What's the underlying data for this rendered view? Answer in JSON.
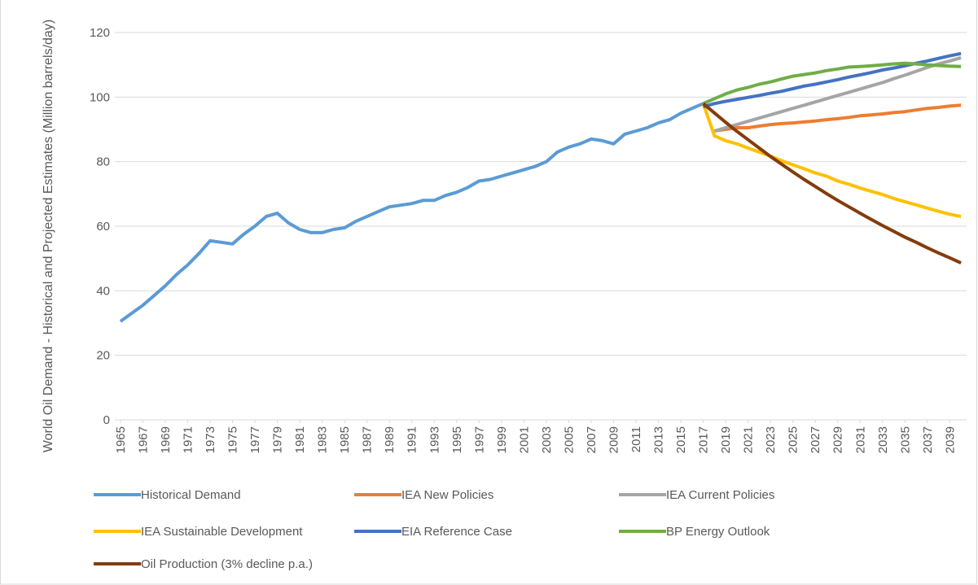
{
  "chart_data": {
    "type": "line",
    "y_label": "World Oil Demand - Historical and Projected Estimates (Million barrels/day)",
    "x": [
      1965,
      1966,
      1967,
      1968,
      1969,
      1970,
      1971,
      1972,
      1973,
      1974,
      1975,
      1976,
      1977,
      1978,
      1979,
      1980,
      1981,
      1982,
      1983,
      1984,
      1985,
      1986,
      1987,
      1988,
      1989,
      1990,
      1991,
      1992,
      1993,
      1994,
      1995,
      1996,
      1997,
      1998,
      1999,
      2000,
      2001,
      2002,
      2003,
      2004,
      2005,
      2006,
      2007,
      2008,
      2009,
      2010,
      2011,
      2012,
      2013,
      2014,
      2015,
      2016,
      2017,
      2018,
      2019,
      2020,
      2021,
      2022,
      2023,
      2024,
      2025,
      2026,
      2027,
      2028,
      2029,
      2030,
      2031,
      2032,
      2033,
      2034,
      2035,
      2036,
      2037,
      2038,
      2039,
      2040
    ],
    "xlim": [
      1964.5,
      2040.5
    ],
    "xticks": [
      1965,
      1967,
      1969,
      1971,
      1973,
      1975,
      1977,
      1979,
      1981,
      1983,
      1985,
      1987,
      1989,
      1991,
      1993,
      1995,
      1997,
      1999,
      2001,
      2003,
      2005,
      2007,
      2009,
      2011,
      2013,
      2015,
      2017,
      2019,
      2021,
      2023,
      2025,
      2027,
      2029,
      2031,
      2033,
      2035,
      2037,
      2039
    ],
    "ylim": [
      0,
      120
    ],
    "yticks": [
      0,
      20,
      40,
      60,
      80,
      100,
      120
    ],
    "grid": true,
    "legend": "bottom",
    "series": [
      {
        "name": "Historical Demand",
        "color": "#5b9bd5",
        "values": [
          30.5,
          33,
          35.5,
          38.5,
          41.5,
          45,
          48,
          51.5,
          55.5,
          55,
          54.5,
          57.5,
          60,
          63,
          64,
          61,
          59,
          58,
          58,
          59,
          59.5,
          61.5,
          63,
          64.5,
          66,
          66.5,
          67,
          68,
          68,
          69.5,
          70.5,
          72,
          74,
          74.5,
          75.5,
          76.5,
          77.5,
          78.5,
          80,
          83,
          84.5,
          85.5,
          87,
          86.5,
          85.5,
          88.5,
          89.5,
          90.5,
          92,
          93,
          95,
          96.5,
          98,
          null,
          null,
          null,
          null,
          null,
          null,
          null,
          null,
          null,
          null,
          null,
          null,
          null,
          null,
          null,
          null,
          null,
          null,
          null,
          null,
          null,
          null,
          null
        ]
      },
      {
        "name": "IEA New Policies",
        "color": "#ed7d31",
        "values": [
          null,
          null,
          null,
          null,
          null,
          null,
          null,
          null,
          null,
          null,
          null,
          null,
          null,
          null,
          null,
          null,
          null,
          null,
          null,
          null,
          null,
          null,
          null,
          null,
          null,
          null,
          null,
          null,
          null,
          null,
          null,
          null,
          null,
          null,
          null,
          null,
          null,
          null,
          null,
          null,
          null,
          null,
          null,
          null,
          null,
          null,
          null,
          null,
          null,
          null,
          null,
          null,
          null,
          89.5,
          90,
          90.5,
          90.5,
          91,
          91.5,
          91.8,
          92,
          92.3,
          92.6,
          93,
          93.3,
          93.7,
          94.2,
          94.5,
          94.8,
          95.2,
          95.5,
          96,
          96.5,
          96.8,
          97.2,
          97.5
        ]
      },
      {
        "name": "IEA Current Policies",
        "color": "#a5a5a5",
        "values": [
          null,
          null,
          null,
          null,
          null,
          null,
          null,
          null,
          null,
          null,
          null,
          null,
          null,
          null,
          null,
          null,
          null,
          null,
          null,
          null,
          null,
          null,
          null,
          null,
          null,
          null,
          null,
          null,
          null,
          null,
          null,
          null,
          null,
          null,
          null,
          null,
          null,
          null,
          null,
          null,
          null,
          null,
          null,
          null,
          null,
          null,
          null,
          null,
          null,
          null,
          null,
          null,
          null,
          89.5,
          90.5,
          91.5,
          92.5,
          93.5,
          94.5,
          95.5,
          96.5,
          97.5,
          98.5,
          99.5,
          100.5,
          101.5,
          102.5,
          103.5,
          104.5,
          105.7,
          106.8,
          108,
          109.2,
          110.3,
          111.2,
          112.2
        ]
      },
      {
        "name": "IEA Sustainable Development",
        "color": "#ffc000",
        "values": [
          null,
          null,
          null,
          null,
          null,
          null,
          null,
          null,
          null,
          null,
          null,
          null,
          null,
          null,
          null,
          null,
          null,
          null,
          null,
          null,
          null,
          null,
          null,
          null,
          null,
          null,
          null,
          null,
          null,
          null,
          null,
          null,
          null,
          null,
          null,
          null,
          null,
          null,
          null,
          null,
          null,
          null,
          null,
          null,
          null,
          null,
          null,
          null,
          null,
          null,
          null,
          null,
          98,
          88,
          86.5,
          85.5,
          84.2,
          83,
          81.7,
          80.3,
          79,
          77.8,
          76.5,
          75.5,
          74,
          73,
          71.8,
          70.8,
          69.8,
          68.6,
          67.6,
          66.6,
          65.6,
          64.6,
          63.7,
          63
        ]
      },
      {
        "name": "EIA Reference Case",
        "color": "#4472c4",
        "values": [
          null,
          null,
          null,
          null,
          null,
          null,
          null,
          null,
          null,
          null,
          null,
          null,
          null,
          null,
          null,
          null,
          null,
          null,
          null,
          null,
          null,
          null,
          null,
          null,
          null,
          null,
          null,
          null,
          null,
          null,
          null,
          null,
          null,
          null,
          null,
          null,
          null,
          null,
          null,
          null,
          null,
          null,
          null,
          null,
          null,
          null,
          null,
          null,
          null,
          null,
          null,
          null,
          97,
          98,
          98.7,
          99.3,
          99.9,
          100.5,
          101.2,
          101.8,
          102.6,
          103.4,
          104,
          104.7,
          105.4,
          106.2,
          106.9,
          107.6,
          108.4,
          109,
          109.7,
          110.5,
          111.2,
          112,
          112.8,
          113.5
        ]
      },
      {
        "name": "BP Energy Outlook",
        "color": "#70ad47",
        "values": [
          null,
          null,
          null,
          null,
          null,
          null,
          null,
          null,
          null,
          null,
          null,
          null,
          null,
          null,
          null,
          null,
          null,
          null,
          null,
          null,
          null,
          null,
          null,
          null,
          null,
          null,
          null,
          null,
          null,
          null,
          null,
          null,
          null,
          null,
          null,
          null,
          null,
          null,
          null,
          null,
          null,
          null,
          null,
          null,
          null,
          null,
          null,
          null,
          null,
          null,
          null,
          null,
          98,
          99.5,
          101,
          102.2,
          103,
          104,
          104.7,
          105.6,
          106.5,
          107,
          107.5,
          108.2,
          108.7,
          109.3,
          109.5,
          109.7,
          110,
          110.3,
          110.5,
          110.3,
          110,
          109.8,
          109.6,
          109.5
        ]
      },
      {
        "name": "Oil Production (3% decline p.a.)",
        "color": "#843c0c",
        "values": [
          null,
          null,
          null,
          null,
          null,
          null,
          null,
          null,
          null,
          null,
          null,
          null,
          null,
          null,
          null,
          null,
          null,
          null,
          null,
          null,
          null,
          null,
          null,
          null,
          null,
          null,
          null,
          null,
          null,
          null,
          null,
          null,
          null,
          null,
          null,
          null,
          null,
          null,
          null,
          null,
          null,
          null,
          null,
          null,
          null,
          null,
          null,
          null,
          null,
          null,
          null,
          null,
          98,
          95.1,
          92.2,
          89.4,
          86.8,
          84.2,
          81.6,
          79.2,
          76.8,
          74.5,
          72.3,
          70.1,
          68,
          66,
          64,
          62.1,
          60.2,
          58.4,
          56.6,
          55,
          53.3,
          51.7,
          50.2,
          48.6
        ]
      }
    ]
  }
}
